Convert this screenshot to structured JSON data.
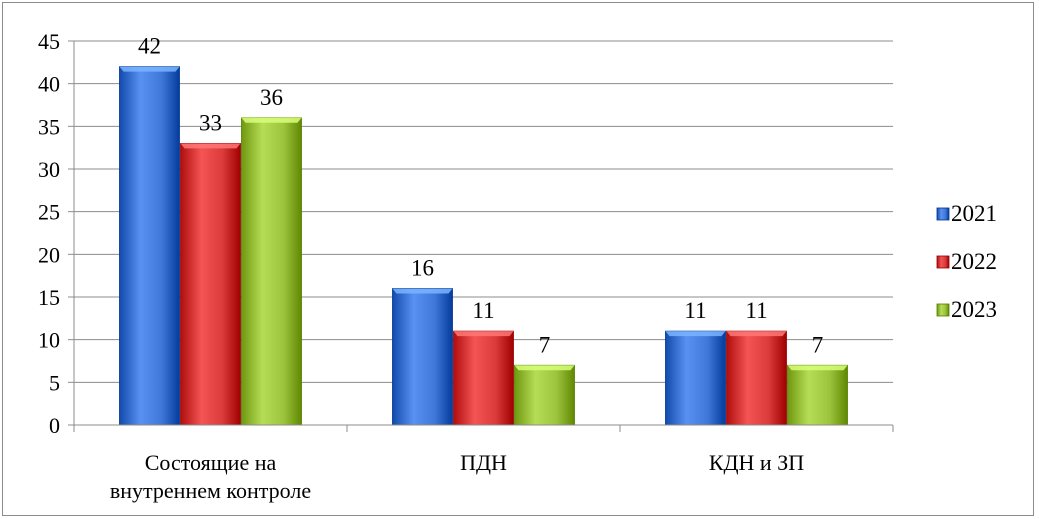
{
  "chart_data": {
    "type": "bar",
    "categories": [
      "Состоящие на внутреннем контроле",
      "ПДН",
      "КДН и ЗП"
    ],
    "category_lines": [
      [
        "Состоящие на",
        "внутреннем контроле"
      ],
      [
        "ПДН"
      ],
      [
        "КДН и ЗП"
      ]
    ],
    "series": [
      {
        "name": "2021",
        "values": [
          42,
          16,
          11
        ],
        "color": "#3f78d8"
      },
      {
        "name": "2022",
        "values": [
          33,
          11,
          11
        ],
        "color": "#dc3b3b"
      },
      {
        "name": "2023",
        "values": [
          36,
          7,
          7
        ],
        "color": "#9cc43c"
      }
    ],
    "ylim": [
      0,
      45
    ],
    "yticks": [
      0,
      5,
      10,
      15,
      20,
      25,
      30,
      35,
      40,
      45
    ],
    "grid": true,
    "legend_position": "right",
    "title": "",
    "xlabel": "",
    "ylabel": ""
  }
}
